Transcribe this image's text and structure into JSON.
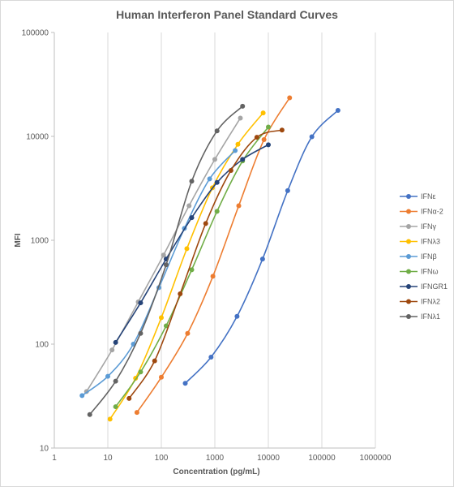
{
  "chart_data": {
    "type": "scatter",
    "title": "Human Interferon Panel Standard Curves",
    "xlabel": "Concentration (pg/mL)",
    "ylabel": "MFI",
    "xscale": "log",
    "yscale": "log",
    "xlim": [
      1,
      1000000
    ],
    "ylim": [
      10,
      100000
    ],
    "xticks": [
      "1",
      "10",
      "100",
      "1000",
      "10000",
      "100000",
      "1000000"
    ],
    "yticks": [
      "10",
      "100",
      "1000",
      "10000",
      "100000"
    ],
    "grid": "vertical",
    "legend_position": "right",
    "series": [
      {
        "name": "IFNε",
        "color": "#4472C4",
        "points": [
          [
            280,
            42
          ],
          [
            850,
            75
          ],
          [
            2600,
            185
          ],
          [
            7800,
            660
          ],
          [
            23000,
            3000
          ],
          [
            65000,
            9900
          ],
          [
            200000,
            17800
          ]
        ]
      },
      {
        "name": "IFNα-2",
        "color": "#ED7D31",
        "points": [
          [
            35,
            22
          ],
          [
            100,
            48
          ],
          [
            310,
            127
          ],
          [
            920,
            450
          ],
          [
            2800,
            2150
          ],
          [
            8300,
            9300
          ],
          [
            25000,
            23500
          ]
        ]
      },
      {
        "name": "IFNγ",
        "color": "#A5A5A5",
        "points": [
          [
            4,
            35
          ],
          [
            12,
            88
          ],
          [
            37,
            255
          ],
          [
            110,
            720
          ],
          [
            330,
            2150
          ],
          [
            1000,
            6000
          ],
          [
            3000,
            15000
          ]
        ]
      },
      {
        "name": "IFNλ3",
        "color": "#FFC000",
        "points": [
          [
            11,
            19
          ],
          [
            33,
            47
          ],
          [
            100,
            180
          ],
          [
            300,
            830
          ],
          [
            900,
            3200
          ],
          [
            2700,
            8400
          ],
          [
            8000,
            16800
          ]
        ]
      },
      {
        "name": "IFNβ",
        "color": "#5B9BD5",
        "points": [
          [
            3.3,
            32
          ],
          [
            10,
            49
          ],
          [
            30,
            100
          ],
          [
            90,
            350
          ],
          [
            270,
            1300
          ],
          [
            800,
            3900
          ],
          [
            2400,
            7300
          ]
        ]
      },
      {
        "name": "IFNω",
        "color": "#70AD47",
        "points": [
          [
            14,
            25
          ],
          [
            41,
            54
          ],
          [
            123,
            150
          ],
          [
            370,
            520
          ],
          [
            1100,
            1900
          ],
          [
            3300,
            5800
          ],
          [
            10000,
            12300
          ]
        ]
      },
      {
        "name": "IFNGR1",
        "color": "#264478",
        "points": [
          [
            14,
            104
          ],
          [
            41,
            250
          ],
          [
            123,
            660
          ],
          [
            370,
            1650
          ],
          [
            1100,
            3600
          ],
          [
            3300,
            6000
          ],
          [
            10000,
            8300
          ]
        ]
      },
      {
        "name": "IFNλ2",
        "color": "#9E480E",
        "points": [
          [
            25,
            30
          ],
          [
            75,
            69
          ],
          [
            225,
            305
          ],
          [
            675,
            1450
          ],
          [
            2000,
            4700
          ],
          [
            6100,
            9800
          ],
          [
            18000,
            11500
          ]
        ]
      },
      {
        "name": "IFNλ1",
        "color": "#636363",
        "points": [
          [
            4.6,
            21
          ],
          [
            14,
            44
          ],
          [
            41,
            127
          ],
          [
            123,
            580
          ],
          [
            370,
            3700
          ],
          [
            1100,
            11300
          ],
          [
            3300,
            19500
          ]
        ]
      }
    ]
  }
}
